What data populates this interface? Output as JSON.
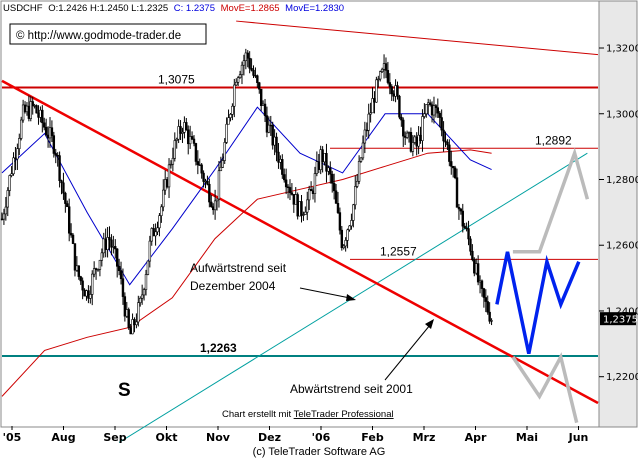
{
  "header": {
    "symbol": "USDCHF",
    "ohlc": "O:1.2426 H:1.2450 L:1.2325",
    "close": "C: 1.2375",
    "mova1": "MovE=1.2865",
    "mova2": "MovE=1.2830",
    "colors": {
      "close": "#0000dd",
      "mova1": "#cc0000",
      "mova2": "#0000dd"
    }
  },
  "watermark": "© http://www.godmode-trader.de",
  "credit_inline": "Chart erstellt mit ",
  "credit_link": "TeleTrader Professional",
  "footer": "(c) TeleTrader Software AG",
  "chart_data": {
    "type": "candlestick",
    "title": "",
    "instrument": "USDCHF",
    "x_ticks": [
      "'05",
      "Aug",
      "Sep",
      "Okt",
      "Nov",
      "Dez",
      "'06",
      "Feb",
      "Mrz",
      "Apr",
      "Mai",
      "Jun"
    ],
    "y_ticks": [
      "1,3200",
      "1,3000",
      "1,2800",
      "1,2600",
      "1,2400",
      "1,2200"
    ],
    "ylim": [
      1.205,
      1.334
    ],
    "last_price_label": "1,2375",
    "series_colors": {
      "price": "#000000",
      "ema_fast": "#0000cc",
      "ema_slow": "#cc0000",
      "forecast": "#0022ee",
      "alt_scenario": "#bbbbbb",
      "support_line": "#008080",
      "trend_up": "#00a0a0",
      "trend_down": "#ee0000"
    },
    "price_path": [
      [
        0,
        1.268
      ],
      [
        1,
        1.285
      ],
      [
        2,
        1.3
      ],
      [
        3,
        1.302
      ],
      [
        4,
        1.296
      ],
      [
        5,
        1.29
      ],
      [
        6,
        1.272
      ],
      [
        7,
        1.252
      ],
      [
        8,
        1.245
      ],
      [
        9,
        1.255
      ],
      [
        10,
        1.263
      ],
      [
        11,
        1.252
      ],
      [
        12,
        1.232
      ],
      [
        13,
        1.242
      ],
      [
        14,
        1.262
      ],
      [
        15,
        1.272
      ],
      [
        16,
        1.288
      ],
      [
        17,
        1.297
      ],
      [
        18,
        1.289
      ],
      [
        19,
        1.28
      ],
      [
        20,
        1.272
      ],
      [
        21,
        1.292
      ],
      [
        22,
        1.312
      ],
      [
        23,
        1.318
      ],
      [
        24,
        1.308
      ],
      [
        25,
        1.296
      ],
      [
        26,
        1.287
      ],
      [
        27,
        1.278
      ],
      [
        28,
        1.27
      ],
      [
        29,
        1.275
      ],
      [
        30,
        1.288
      ],
      [
        31,
        1.279
      ],
      [
        32,
        1.26
      ],
      [
        33,
        1.272
      ],
      [
        34,
        1.292
      ],
      [
        35,
        1.306
      ],
      [
        36,
        1.314
      ],
      [
        37,
        1.306
      ],
      [
        38,
        1.292
      ],
      [
        39,
        1.29
      ],
      [
        40,
        1.303
      ],
      [
        41,
        1.3
      ],
      [
        42,
        1.288
      ],
      [
        43,
        1.27
      ],
      [
        44,
        1.26
      ],
      [
        45,
        1.245
      ],
      [
        46,
        1.238
      ]
    ],
    "ema_fast_path": [
      [
        0,
        1.282
      ],
      [
        4,
        1.294
      ],
      [
        8,
        1.27
      ],
      [
        12,
        1.248
      ],
      [
        16,
        1.265
      ],
      [
        20,
        1.283
      ],
      [
        24,
        1.302
      ],
      [
        28,
        1.288
      ],
      [
        32,
        1.282
      ],
      [
        36,
        1.3
      ],
      [
        40,
        1.3
      ],
      [
        44,
        1.286
      ],
      [
        46,
        1.283
      ]
    ],
    "ema_slow_path": [
      [
        0,
        1.214
      ],
      [
        4,
        1.228
      ],
      [
        8,
        1.232
      ],
      [
        12,
        1.235
      ],
      [
        16,
        1.244
      ],
      [
        20,
        1.262
      ],
      [
        24,
        1.274
      ],
      [
        28,
        1.277
      ],
      [
        32,
        1.28
      ],
      [
        36,
        1.284
      ],
      [
        40,
        1.288
      ],
      [
        44,
        1.289
      ],
      [
        46,
        1.288
      ]
    ],
    "forecast_path": [
      [
        46.5,
        1.242
      ],
      [
        47.5,
        1.258
      ],
      [
        49.5,
        1.227
      ],
      [
        51.2,
        1.255
      ],
      [
        52.5,
        1.242
      ],
      [
        54.2,
        1.255
      ]
    ],
    "alt_scenario_path": [
      [
        48,
        1.258
      ],
      [
        50.5,
        1.258
      ],
      [
        53.8,
        1.288
      ],
      [
        55,
        1.274
      ]
    ],
    "alt_scenario_path_2": [
      [
        48,
        1.226
      ],
      [
        50.5,
        1.214
      ],
      [
        52.5,
        1.226
      ],
      [
        54,
        1.206
      ]
    ],
    "horizontal_levels": [
      {
        "label": "1,3075",
        "value": 1.308,
        "color": "#cc0000"
      },
      {
        "label": "1,2892",
        "value": 1.2895,
        "color": "#cc0000"
      },
      {
        "label": "1,2557",
        "value": 1.2557,
        "color": "#cc0000"
      },
      {
        "label": "1,2263",
        "value": 1.2263,
        "color": "#008080"
      }
    ],
    "trendlines": [
      {
        "name": "Aufwärtstrend seit Dezember 2004",
        "from": [
          11,
          1.2
        ],
        "to": [
          55,
          1.288
        ],
        "color": "#00a0a0"
      },
      {
        "name": "Abwärtstrend seit 2001",
        "from": [
          0,
          1.31
        ],
        "to": [
          56,
          1.212
        ],
        "color": "#ee0000"
      },
      {
        "name": "resistance",
        "from": [
          22,
          1.3282
        ],
        "to": [
          56,
          1.318
        ],
        "color": "#cc0000"
      }
    ],
    "annotations": [
      {
        "text": "Aufwärtstrend seit",
        "line2": "Dezember 2004"
      },
      {
        "text": "Abwärtstrend seit 2001"
      },
      {
        "text": "S"
      }
    ]
  }
}
